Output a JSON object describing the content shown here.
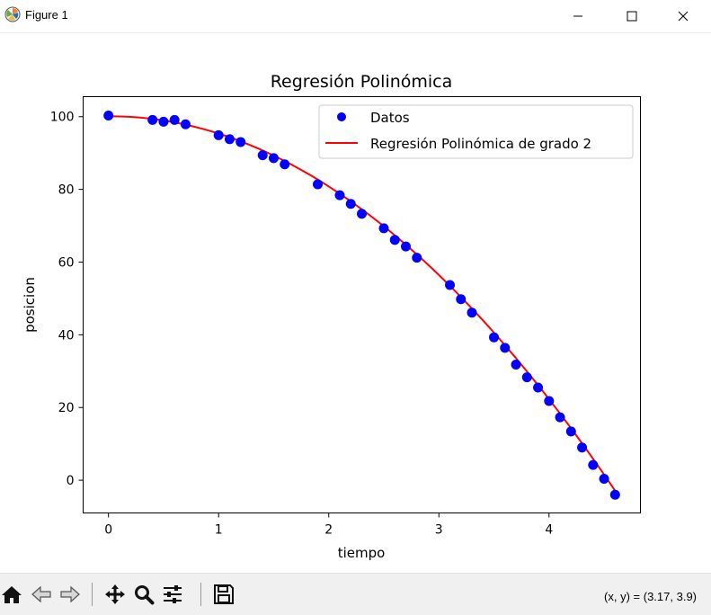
{
  "window": {
    "title": "Figure 1",
    "controls": [
      "minimize",
      "maximize",
      "close"
    ]
  },
  "toolbar": {
    "buttons": [
      "home-icon",
      "back-arrow-icon",
      "forward-arrow-icon",
      "pan-icon",
      "zoom-icon",
      "configure-subplots-icon",
      "save-icon"
    ],
    "coords_text": "(x, y) = (3.17, 3.9)"
  },
  "colors": {
    "data_points": "#0000ff",
    "regression_line": "#ff0000"
  },
  "chart_data": {
    "type": "scatter",
    "title": "Regresión Polinómica",
    "xlabel": "tiempo",
    "ylabel": "posicion",
    "xlim": [
      -0.23,
      4.83
    ],
    "ylim": [
      -9,
      105.5
    ],
    "xticks": [
      0,
      1,
      2,
      3,
      4
    ],
    "yticks": [
      0,
      20,
      40,
      60,
      80,
      100
    ],
    "grid": false,
    "legend_position": "top-right",
    "legend": [
      "Datos",
      "Regresión Polinómica de grado 2"
    ],
    "series": [
      {
        "name": "Datos",
        "kind": "scatter",
        "color": "#0000ff",
        "points": [
          [
            0,
            100.3
          ],
          [
            0.4,
            99.1
          ],
          [
            0.5,
            98.6
          ],
          [
            0.6,
            99.1
          ],
          [
            0.7,
            97.9
          ],
          [
            1.0,
            94.9
          ],
          [
            1.1,
            93.8
          ],
          [
            1.2,
            93.0
          ],
          [
            1.4,
            89.4
          ],
          [
            1.5,
            88.6
          ],
          [
            1.6,
            86.9
          ],
          [
            1.9,
            81.4
          ],
          [
            2.1,
            78.4
          ],
          [
            2.2,
            76.0
          ],
          [
            2.3,
            73.3
          ],
          [
            2.5,
            69.3
          ],
          [
            2.6,
            66.1
          ],
          [
            2.7,
            64.3
          ],
          [
            2.8,
            61.2
          ],
          [
            3.1,
            53.7
          ],
          [
            3.2,
            49.8
          ],
          [
            3.3,
            46.1
          ],
          [
            3.5,
            39.3
          ],
          [
            3.6,
            36.4
          ],
          [
            3.7,
            31.8
          ],
          [
            3.8,
            28.3
          ],
          [
            3.9,
            25.5
          ],
          [
            4.0,
            21.8
          ],
          [
            4.1,
            17.3
          ],
          [
            4.2,
            13.4
          ],
          [
            4.3,
            9.0
          ],
          [
            4.4,
            4.2
          ],
          [
            4.5,
            0.4
          ],
          [
            4.6,
            -4.0
          ]
        ]
      },
      {
        "name": "Regresión Polinómica de grado 2",
        "kind": "line",
        "color": "#ff0000",
        "polynomial": {
          "a": -4.9,
          "b": 0.15,
          "c": 100.1
        },
        "x_range": [
          0,
          4.6
        ]
      }
    ]
  }
}
